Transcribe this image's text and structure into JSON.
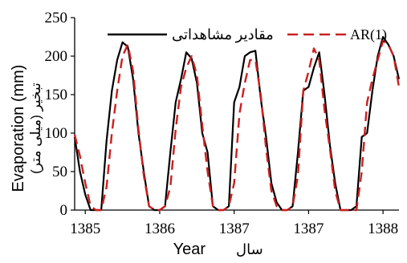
{
  "chart_data": {
    "type": "line",
    "title": "",
    "xlabel": "Year",
    "xlabel_alt": "سال",
    "ylabel": "Evaporation (mm)",
    "ylabel_alt": "تبخیر (میلی متر)",
    "ylim": [
      0,
      250
    ],
    "yticks": [
      0,
      50,
      100,
      150,
      200,
      250
    ],
    "xlim": [
      0,
      61
    ],
    "xtick_positions": [
      2,
      16,
      30,
      44,
      58
    ],
    "xtick_labels": [
      "1385",
      "1386",
      "1387",
      "1387",
      "1388"
    ],
    "grid": false,
    "legend": "top",
    "x": [
      0,
      1,
      2,
      3,
      4,
      5,
      6,
      7,
      8,
      9,
      10,
      11,
      12,
      13,
      14,
      15,
      16,
      17,
      18,
      19,
      20,
      21,
      22,
      23,
      24,
      25,
      26,
      27,
      28,
      29,
      30,
      31,
      32,
      33,
      34,
      35,
      36,
      37,
      38,
      39,
      40,
      41,
      42,
      43,
      44,
      45,
      46,
      47,
      48,
      49,
      50,
      51,
      52,
      53,
      54,
      55,
      56,
      57,
      58,
      59,
      60,
      61
    ],
    "series": [
      {
        "name": "مقادیر مشاهداتی",
        "color": "#000000",
        "dash": "solid",
        "values": [
          95,
          50,
          20,
          0,
          0,
          0,
          90,
          155,
          195,
          218,
          212,
          170,
          100,
          50,
          5,
          0,
          0,
          5,
          75,
          140,
          170,
          205,
          197,
          165,
          100,
          75,
          5,
          0,
          0,
          5,
          140,
          160,
          200,
          205,
          207,
          145,
          95,
          35,
          10,
          0,
          0,
          5,
          75,
          155,
          160,
          185,
          205,
          150,
          85,
          35,
          0,
          0,
          0,
          5,
          95,
          100,
          155,
          200,
          225,
          215,
          200,
          170
        ]
      },
      {
        "name": "AR(1)",
        "color": "#cc1f1f",
        "dash": "dashed",
        "values": [
          98,
          70,
          35,
          5,
          0,
          0,
          30,
          100,
          155,
          200,
          215,
          180,
          105,
          45,
          5,
          0,
          0,
          5,
          30,
          105,
          160,
          185,
          200,
          175,
          110,
          50,
          5,
          0,
          0,
          5,
          35,
          125,
          165,
          195,
          195,
          150,
          80,
          25,
          5,
          0,
          0,
          5,
          45,
          155,
          180,
          210,
          195,
          130,
          80,
          25,
          0,
          0,
          0,
          0,
          50,
          140,
          170,
          195,
          220,
          215,
          200,
          160
        ]
      }
    ]
  }
}
